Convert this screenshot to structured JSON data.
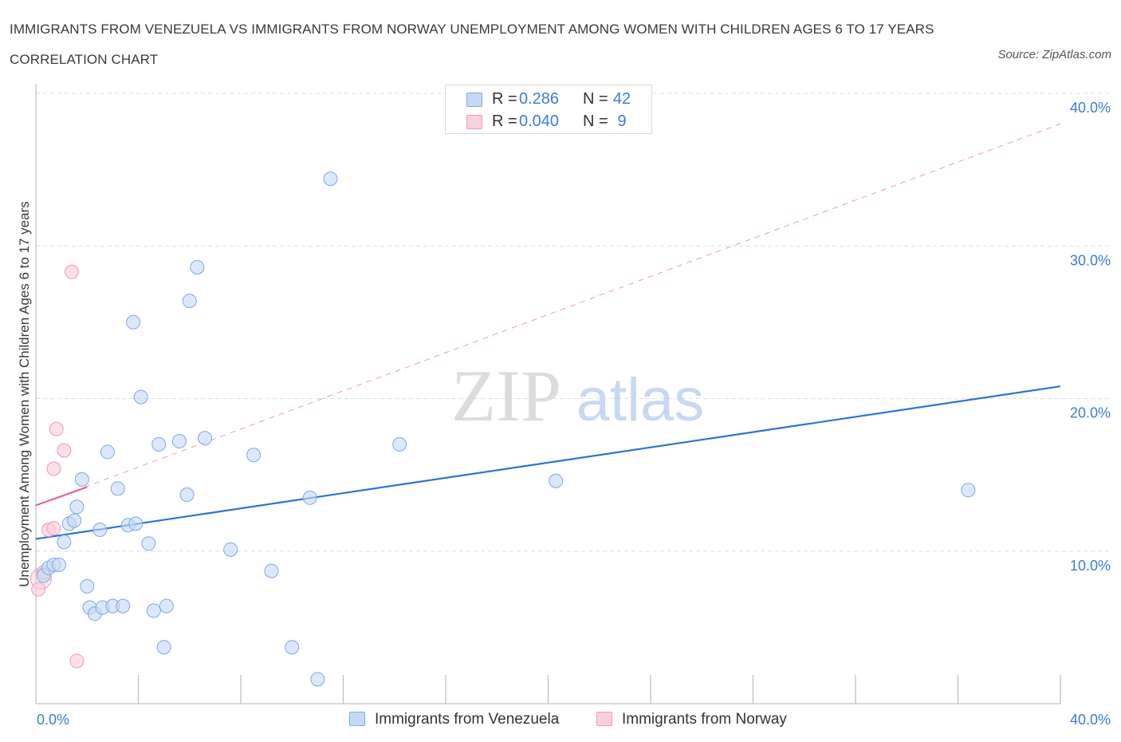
{
  "title": "IMMIGRANTS FROM VENEZUELA VS IMMIGRANTS FROM NORWAY UNEMPLOYMENT AMONG WOMEN WITH CHILDREN AGES 6 TO 17 YEARS CORRELATION CHART",
  "source": "Source: ZipAtlas.com",
  "watermark": {
    "zip": "ZIP",
    "atlas": "atlas"
  },
  "legend": {
    "rows": [
      {
        "r_label": "R =",
        "r_value": "0.286",
        "n_label": "N =",
        "n_value": "42"
      },
      {
        "r_label": "R =",
        "r_value": "0.040",
        "n_label": "N =",
        "n_value": "9"
      }
    ],
    "series": [
      "Immigrants from Venezuela",
      "Immigrants from Norway"
    ]
  },
  "colors": {
    "venezuela_fill": "#c5d9f5",
    "venezuela_stroke": "#7aaae6",
    "venezuela_line": "#2f74d0",
    "norway_fill": "#fbd0dc",
    "norway_stroke": "#ee9ab2",
    "norway_line": "#e06a8e",
    "axis_text": "#3b7dd8",
    "grid": "#dcdcdc"
  },
  "chart_data": {
    "type": "scatter",
    "title": "IMMIGRANTS FROM VENEZUELA VS IMMIGRANTS FROM NORWAY UNEMPLOYMENT AMONG WOMEN WITH CHILDREN AGES 6 TO 17 YEARS CORRELATION CHART",
    "xlabel": "",
    "ylabel": "Unemployment Among Women with Children Ages 6 to 17 years",
    "xlim": [
      0,
      40
    ],
    "ylim": [
      0,
      40
    ],
    "x_tick_labels": [
      "0.0%",
      "40.0%"
    ],
    "y_ticks": [
      10,
      20,
      30,
      40
    ],
    "y_tick_labels": [
      "10.0%",
      "20.0%",
      "30.0%",
      "40.0%"
    ],
    "series": [
      {
        "name": "Immigrants from Venezuela",
        "x": [
          0.3,
          0.5,
          0.7,
          0.9,
          1.1,
          1.3,
          1.5,
          1.6,
          1.8,
          2.0,
          2.1,
          2.3,
          2.5,
          2.6,
          2.8,
          3.0,
          3.2,
          3.4,
          3.6,
          3.8,
          3.9,
          4.1,
          4.4,
          4.6,
          4.8,
          5.0,
          5.1,
          5.6,
          5.9,
          6.0,
          6.3,
          6.6,
          7.6,
          8.5,
          9.2,
          10.0,
          10.7,
          11.0,
          11.5,
          14.2,
          20.3,
          36.4
        ],
        "y": [
          8.4,
          8.9,
          9.1,
          9.1,
          10.6,
          11.8,
          12.0,
          12.9,
          14.7,
          7.7,
          6.3,
          5.9,
          11.4,
          6.3,
          16.5,
          6.4,
          14.1,
          6.4,
          11.7,
          25.0,
          11.8,
          20.1,
          10.5,
          6.1,
          17.0,
          3.7,
          6.4,
          17.2,
          13.7,
          26.4,
          28.6,
          17.4,
          10.1,
          16.3,
          8.7,
          3.7,
          13.5,
          1.6,
          34.4,
          17.0,
          14.6,
          14.0
        ],
        "trendline": {
          "x": [
            0,
            40
          ],
          "y": [
            10.8,
            20.8
          ]
        }
      },
      {
        "name": "Immigrants from Norway",
        "x": [
          0.1,
          0.3,
          0.5,
          0.7,
          0.7,
          0.8,
          1.1,
          1.6,
          1.4
        ],
        "y": [
          7.5,
          8.6,
          11.4,
          11.5,
          15.4,
          18.0,
          16.6,
          2.8,
          28.3
        ],
        "trendline": {
          "x": [
            0,
            2.0
          ],
          "y": [
            13.0,
            14.2
          ]
        },
        "extended_trendline": {
          "x": [
            0,
            40
          ],
          "y": [
            13.0,
            38.0
          ]
        }
      }
    ]
  }
}
